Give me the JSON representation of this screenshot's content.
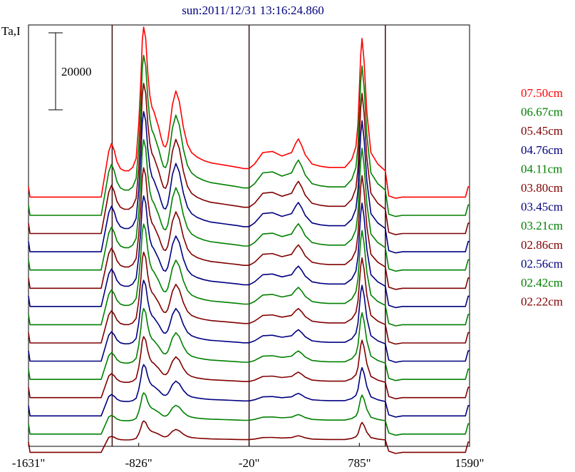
{
  "chart_data": {
    "type": "line",
    "title": "sun:2011/12/31 13:16:24.860",
    "ylabel": "Ta,I",
    "scale_bar_label": "20000",
    "xlim": [
      -1631,
      1590
    ],
    "x_ticks": [
      {
        "value": -1631,
        "label": "-1631\""
      },
      {
        "value": -826,
        "label": "-826\""
      },
      {
        "value": -20,
        "label": "-20\""
      },
      {
        "value": 785,
        "label": "785\""
      },
      {
        "value": 1590,
        "label": "1590\""
      }
    ],
    "vertical_lines": [
      -1020,
      -20,
      975
    ],
    "legend": [
      {
        "label": "07.50cm",
        "color": "#ff0000"
      },
      {
        "label": "06.67cm",
        "color": "#008000"
      },
      {
        "label": "05.45cm",
        "color": "#800000"
      },
      {
        "label": "04.76cm",
        "color": "#000080"
      },
      {
        "label": "04.11cm",
        "color": "#008000"
      },
      {
        "label": "03.80cm",
        "color": "#800000"
      },
      {
        "label": "03.45cm",
        "color": "#000080"
      },
      {
        "label": "03.21cm",
        "color": "#008000"
      },
      {
        "label": "02.86cm",
        "color": "#800000"
      },
      {
        "label": "02.56cm",
        "color": "#000080"
      },
      {
        "label": "02.42cm",
        "color": "#008000"
      },
      {
        "label": "02.22cm",
        "color": "#800000"
      }
    ],
    "series_colors": [
      "#ff0000",
      "#008000",
      "#800000",
      "#000080",
      "#008000",
      "#800000",
      "#000080",
      "#008000",
      "#800000",
      "#000080",
      "#008000",
      "#800000",
      "#000080",
      "#008000",
      "#800000"
    ],
    "profile": {
      "x": [
        -1631,
        -1620,
        -1560,
        -1100,
        -1045,
        -1025,
        -1005,
        -985,
        -960,
        -930,
        -900,
        -870,
        -845,
        -826,
        -810,
        -800,
        -790,
        -775,
        -760,
        -745,
        -730,
        -715,
        -700,
        -680,
        -660,
        -645,
        -630,
        -615,
        -600,
        -580,
        -555,
        -530,
        -500,
        -470,
        -440,
        -400,
        -350,
        -300,
        -250,
        -200,
        -150,
        -100,
        -60,
        -20,
        20,
        80,
        150,
        220,
        290,
        320,
        340,
        365,
        390,
        440,
        500,
        560,
        620,
        680,
        730,
        760,
        775,
        785,
        795,
        805,
        820,
        840,
        870,
        920,
        975,
        1000,
        1050,
        1100,
        1200,
        1300,
        1400,
        1500,
        1560,
        1580,
        1590
      ],
      "y": [
        0,
        -9,
        -9,
        -9,
        31,
        38,
        32,
        22,
        16,
        14,
        14,
        17,
        25,
        55,
        95,
        128,
        140,
        130,
        100,
        80,
        70,
        66,
        60,
        52,
        42,
        36,
        35,
        40,
        52,
        72,
        84,
        75,
        52,
        37,
        30,
        26,
        23,
        21,
        20,
        19,
        18,
        17,
        16,
        16,
        20,
        30,
        31,
        27,
        30,
        38,
        42,
        36,
        28,
        20,
        18,
        17,
        17,
        17,
        24,
        35,
        55,
        85,
        115,
        130,
        110,
        65,
        30,
        20,
        14,
        -8,
        -10,
        -9,
        -9,
        -9,
        -9,
        -9,
        -9,
        0,
        0
      ]
    }
  }
}
